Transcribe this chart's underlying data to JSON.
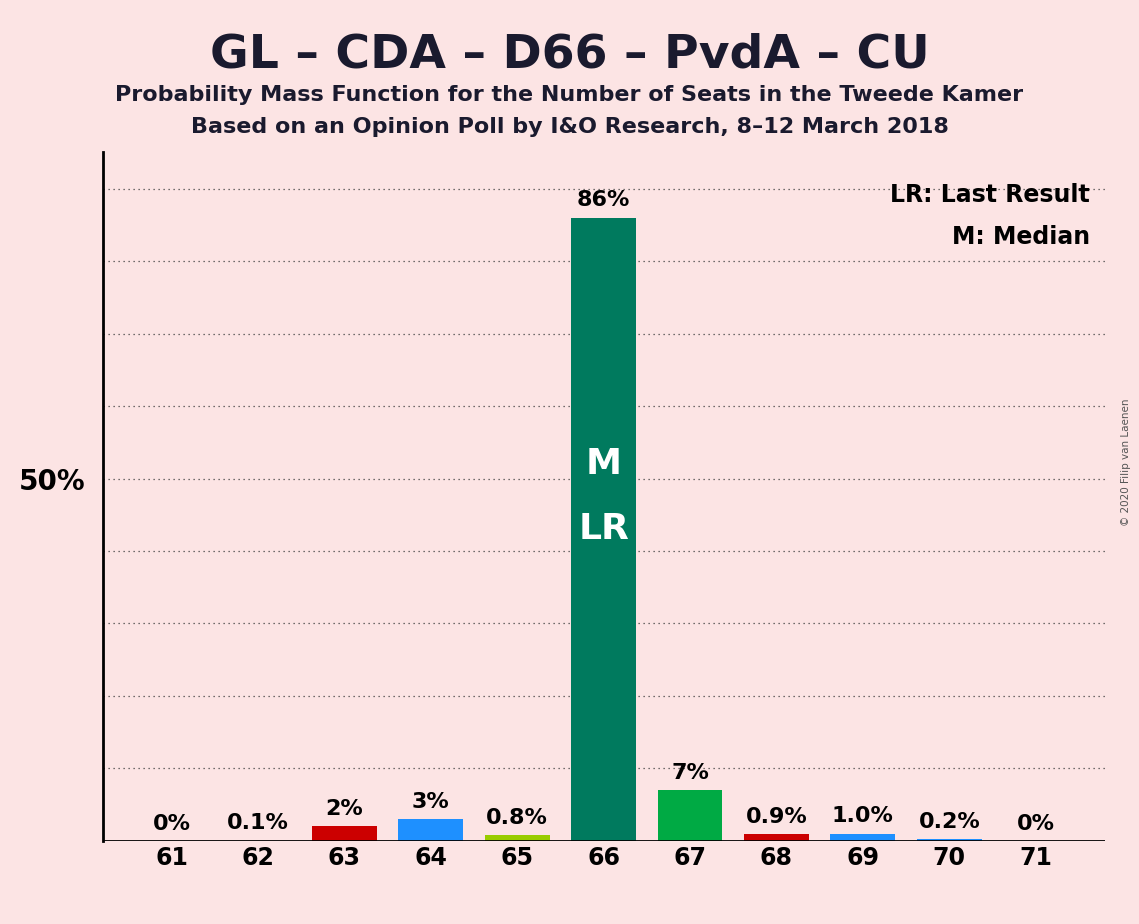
{
  "title": "GL – CDA – D66 – PvdA – CU",
  "subtitle1": "Probability Mass Function for the Number of Seats in the Tweede Kamer",
  "subtitle2": "Based on an Opinion Poll by I&O Research, 8–12 March 2018",
  "copyright": "© 2020 Filip van Laenen",
  "legend_lr": "LR: Last Result",
  "legend_m": "M: Median",
  "background_color": "#fce4e4",
  "seats": [
    61,
    62,
    63,
    64,
    65,
    66,
    67,
    68,
    69,
    70,
    71
  ],
  "values": [
    0.0,
    0.1,
    2.0,
    3.0,
    0.8,
    86.0,
    7.0,
    0.9,
    1.0,
    0.2,
    0.0
  ],
  "labels": [
    "0%",
    "0.1%",
    "2%",
    "3%",
    "0.8%",
    "86%",
    "7%",
    "0.9%",
    "1.0%",
    "0.2%",
    "0%"
  ],
  "bar_colors": [
    "#fce4e4",
    "#fce4e4",
    "#cc0000",
    "#1e90ff",
    "#99cc00",
    "#007a5e",
    "#00aa44",
    "#cc0000",
    "#1e90ff",
    "#1e90ff",
    "#fce4e4"
  ],
  "median_seat": 66,
  "lr_seat": 66,
  "median_label": "M",
  "lr_label": "LR",
  "ylabel_50": "50%",
  "ylim": [
    0,
    95
  ],
  "yticks": [
    10,
    20,
    30,
    40,
    50,
    60,
    70,
    80,
    90
  ],
  "grid_color": "#444444",
  "bar_width": 0.75,
  "title_fontsize": 34,
  "subtitle_fontsize": 16,
  "label_fontsize": 16,
  "tick_fontsize": 17,
  "legend_fontsize": 17,
  "ylabel_fontsize": 20
}
